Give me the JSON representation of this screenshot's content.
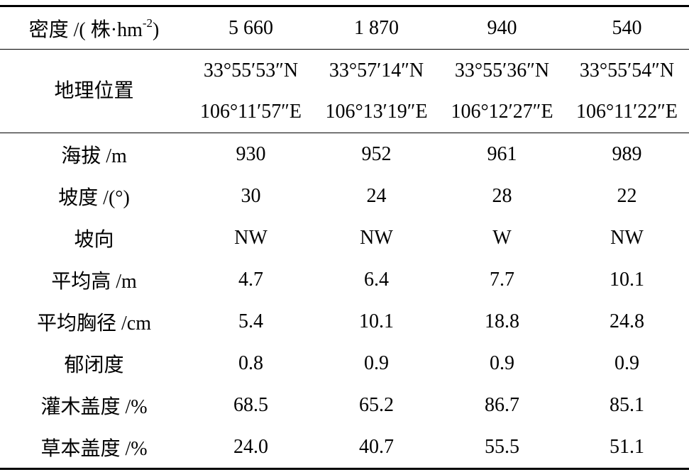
{
  "table": {
    "header": {
      "label": {
        "text": "密度 /( 株·hm",
        "sup": "-2",
        "tail": ")"
      },
      "cells": [
        "5 660",
        "1 870",
        "940",
        "540"
      ]
    },
    "location": {
      "label": "地理位置",
      "cells": [
        [
          "33°55′53″N",
          "106°11′57″E"
        ],
        [
          "33°57′14″N",
          "106°13′19″E"
        ],
        [
          "33°55′36″N",
          "106°12′27″E"
        ],
        [
          "33°55′54″N",
          "106°11′22″E"
        ]
      ]
    },
    "rows": [
      {
        "label": "海拔 /m",
        "cells": [
          "930",
          "952",
          "961",
          "989"
        ]
      },
      {
        "label": "坡度 /(°)",
        "cells": [
          "30",
          "24",
          "28",
          "22"
        ]
      },
      {
        "label": "坡向",
        "cells": [
          "NW",
          "NW",
          "W",
          "NW"
        ]
      },
      {
        "label": "平均高 /m",
        "cells": [
          "4.7",
          "6.4",
          "7.7",
          "10.1"
        ]
      },
      {
        "label": "平均胸径 /cm",
        "cells": [
          "5.4",
          "10.1",
          "18.8",
          "24.8"
        ]
      },
      {
        "label": "郁闭度",
        "cells": [
          "0.8",
          "0.9",
          "0.9",
          "0.9"
        ]
      },
      {
        "label": "灌木盖度 /%",
        "cells": [
          "68.5",
          "65.2",
          "86.7",
          "85.1"
        ]
      },
      {
        "label": "草本盖度 /%",
        "cells": [
          "24.0",
          "40.7",
          "55.5",
          "51.1"
        ]
      }
    ]
  }
}
